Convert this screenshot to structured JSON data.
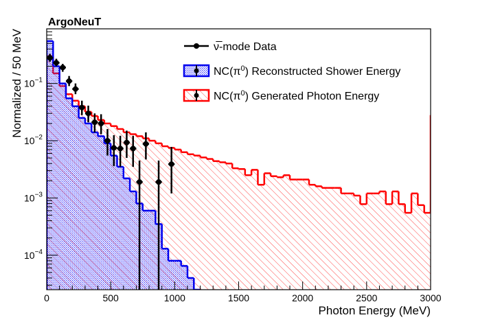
{
  "chart_data": {
    "type": "histogram",
    "experiment_label": "ArgoNeuT",
    "xlabel": "Photon Energy (MeV)",
    "ylabel": "Normalized / 50 MeV",
    "xlim": [
      0,
      3000
    ],
    "ylim": [
      2.5e-05,
      0.9
    ],
    "yscale": "log",
    "bin_width": 50,
    "x_ticks": [
      0,
      500,
      1000,
      1500,
      2000,
      2500,
      3000
    ],
    "x_tick_labels": [
      "0",
      "500",
      "1000",
      "1500",
      "2000",
      "2500",
      "3000"
    ],
    "y_major_ticks": [
      0.0001,
      0.001,
      0.01,
      0.1
    ],
    "y_tick_labels": [
      {
        "base": "10",
        "exp": "−4"
      },
      {
        "base": "10",
        "exp": "−3"
      },
      {
        "base": "10",
        "exp": "−2"
      },
      {
        "base": "10",
        "exp": "−1"
      }
    ],
    "legend": {
      "placement": "top-center",
      "entries": [
        {
          "label_prefix": "ν̅-mode Data",
          "label_sup": "",
          "label_suffix": "",
          "series": "data"
        },
        {
          "label_prefix": "NC(π",
          "label_sup": "0",
          "label_suffix": ") Reconstructed Shower Energy",
          "series": "reco"
        },
        {
          "label_prefix": "NC(π",
          "label_sup": "0",
          "label_suffix": ") Generated Photon Energy",
          "series": "gen"
        }
      ]
    },
    "series": [
      {
        "name": "NC(π0) Generated Photon Energy",
        "key": "gen",
        "kind": "histogram",
        "line_color": "#ff0000",
        "fill": "hatch-red",
        "values": [
          0.3,
          0.15,
          0.09,
          0.065,
          0.05,
          0.04,
          0.032,
          0.027,
          0.023,
          0.02,
          0.018,
          0.016,
          0.014,
          0.013,
          0.012,
          0.011,
          0.01,
          0.009,
          0.008,
          0.0075,
          0.007,
          0.0063,
          0.0058,
          0.0055,
          0.0051,
          0.0048,
          0.0044,
          0.0042,
          0.004,
          0.0033,
          0.0032,
          0.0025,
          0.0031,
          0.0017,
          0.0027,
          0.0024,
          0.0023,
          0.0025,
          0.0021,
          0.0021,
          0.0021,
          0.0017,
          0.0016,
          0.0015,
          0.0015,
          0.0015,
          0.0012,
          0.0012,
          0.0011,
          0.00078,
          0.0012,
          0.0012,
          0.0013,
          0.00078,
          0.0013,
          0.00078,
          0.00055,
          0.0012,
          0.00075,
          0.00055,
          0.028
        ]
      },
      {
        "name": "NC(π0) Reconstructed Shower Energy",
        "key": "reco",
        "kind": "histogram",
        "line_color": "#0000ee",
        "fill": "dots-blue",
        "values": [
          0.55,
          0.2,
          0.1,
          0.055,
          0.04,
          0.025,
          0.02,
          0.014,
          0.012,
          0.009,
          0.0055,
          0.0035,
          0.0022,
          0.0013,
          0.0008,
          0.0006,
          0.0006,
          0.00035,
          0.00013,
          8e-05,
          8e-05,
          6.5e-05,
          4e-05,
          2.5e-05
        ]
      },
      {
        "name": "ν̅-mode Data",
        "key": "data",
        "kind": "points",
        "color": "#000000",
        "points": [
          {
            "x": 25,
            "y": 0.28,
            "ylo": 0.24,
            "yhi": 0.33
          },
          {
            "x": 75,
            "y": 0.23,
            "ylo": 0.2,
            "yhi": 0.27
          },
          {
            "x": 125,
            "y": 0.19,
            "ylo": 0.16,
            "yhi": 0.22
          },
          {
            "x": 175,
            "y": 0.11,
            "ylo": 0.09,
            "yhi": 0.135
          },
          {
            "x": 225,
            "y": 0.08,
            "ylo": 0.065,
            "yhi": 0.1
          },
          {
            "x": 275,
            "y": 0.038,
            "ylo": 0.028,
            "yhi": 0.05
          },
          {
            "x": 325,
            "y": 0.03,
            "ylo": 0.021,
            "yhi": 0.041
          },
          {
            "x": 375,
            "y": 0.021,
            "ylo": 0.014,
            "yhi": 0.03
          },
          {
            "x": 425,
            "y": 0.02,
            "ylo": 0.013,
            "yhi": 0.029
          },
          {
            "x": 475,
            "y": 0.01,
            "ylo": 0.0055,
            "yhi": 0.016
          },
          {
            "x": 525,
            "y": 0.0075,
            "ylo": 0.0036,
            "yhi": 0.0125
          },
          {
            "x": 575,
            "y": 0.0073,
            "ylo": 0.0035,
            "yhi": 0.0122
          },
          {
            "x": 625,
            "y": 0.0093,
            "ylo": 0.005,
            "yhi": 0.015
          },
          {
            "x": 675,
            "y": 0.0073,
            "ylo": 0.0035,
            "yhi": 0.0122
          },
          {
            "x": 725,
            "y": 0.0019,
            "ylo": 2.5e-05,
            "yhi": 0.0045
          },
          {
            "x": 775,
            "y": 0.0088,
            "ylo": 0.0047,
            "yhi": 0.014
          },
          {
            "x": 875,
            "y": 0.0019,
            "ylo": 2.5e-05,
            "yhi": 0.0045
          },
          {
            "x": 975,
            "y": 0.0039,
            "ylo": 0.0012,
            "yhi": 0.0078
          }
        ]
      }
    ]
  }
}
